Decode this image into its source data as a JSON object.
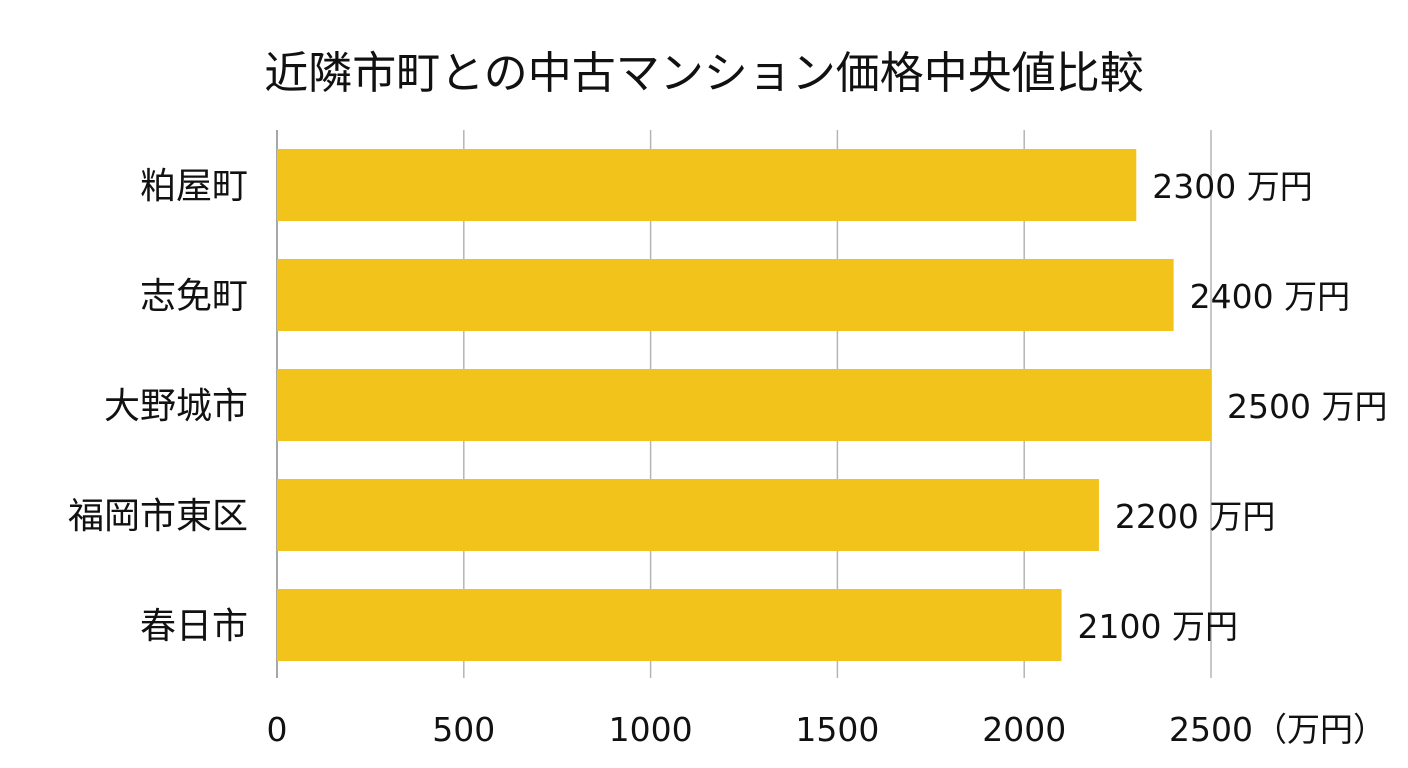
{
  "chart_data": {
    "type": "bar",
    "orientation": "horizontal",
    "title": "近隣市町との中古マンション価格中央値比較",
    "categories": [
      "粕屋町",
      "志免町",
      "大野城市",
      "福岡市東区",
      "春日市"
    ],
    "values": [
      2300,
      2400,
      2500,
      2200,
      2100
    ],
    "value_suffix": " 万円",
    "xlim": [
      0,
      2500
    ],
    "xticks": [
      0,
      500,
      1000,
      1500,
      2000,
      2500
    ],
    "xlabel": "",
    "ylabel": "",
    "x_unit_label": "（万円）",
    "grid": true,
    "legend": "none",
    "bar_color": "#f2c31a"
  }
}
